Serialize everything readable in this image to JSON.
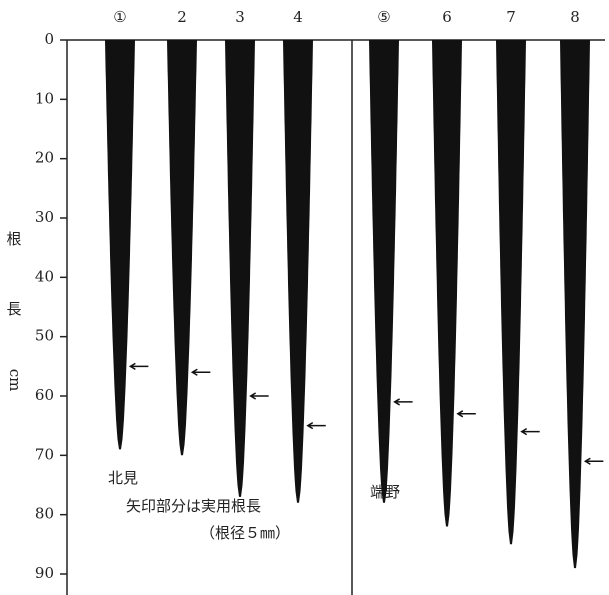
{
  "chart_data": {
    "type": "root",
    "categories": [
      "①",
      "2",
      "3",
      "4",
      "⑤",
      "6",
      "7",
      "8"
    ],
    "values": [
      69,
      70,
      77,
      78,
      78,
      82,
      85,
      89
    ],
    "practical_values": [
      55,
      56,
      60,
      65,
      61,
      63,
      66,
      71
    ],
    "groups": [
      "北見",
      "端野"
    ],
    "y_label": [
      "根",
      "長",
      "cm"
    ],
    "annotation": [
      "矢印部分は実用根長",
      "（根径５㎜）"
    ],
    "color": "#111111",
    "ylim": [
      0,
      90
    ],
    "yticks": [
      0,
      10,
      20,
      30,
      40,
      50,
      60,
      70,
      80,
      90
    ]
  }
}
